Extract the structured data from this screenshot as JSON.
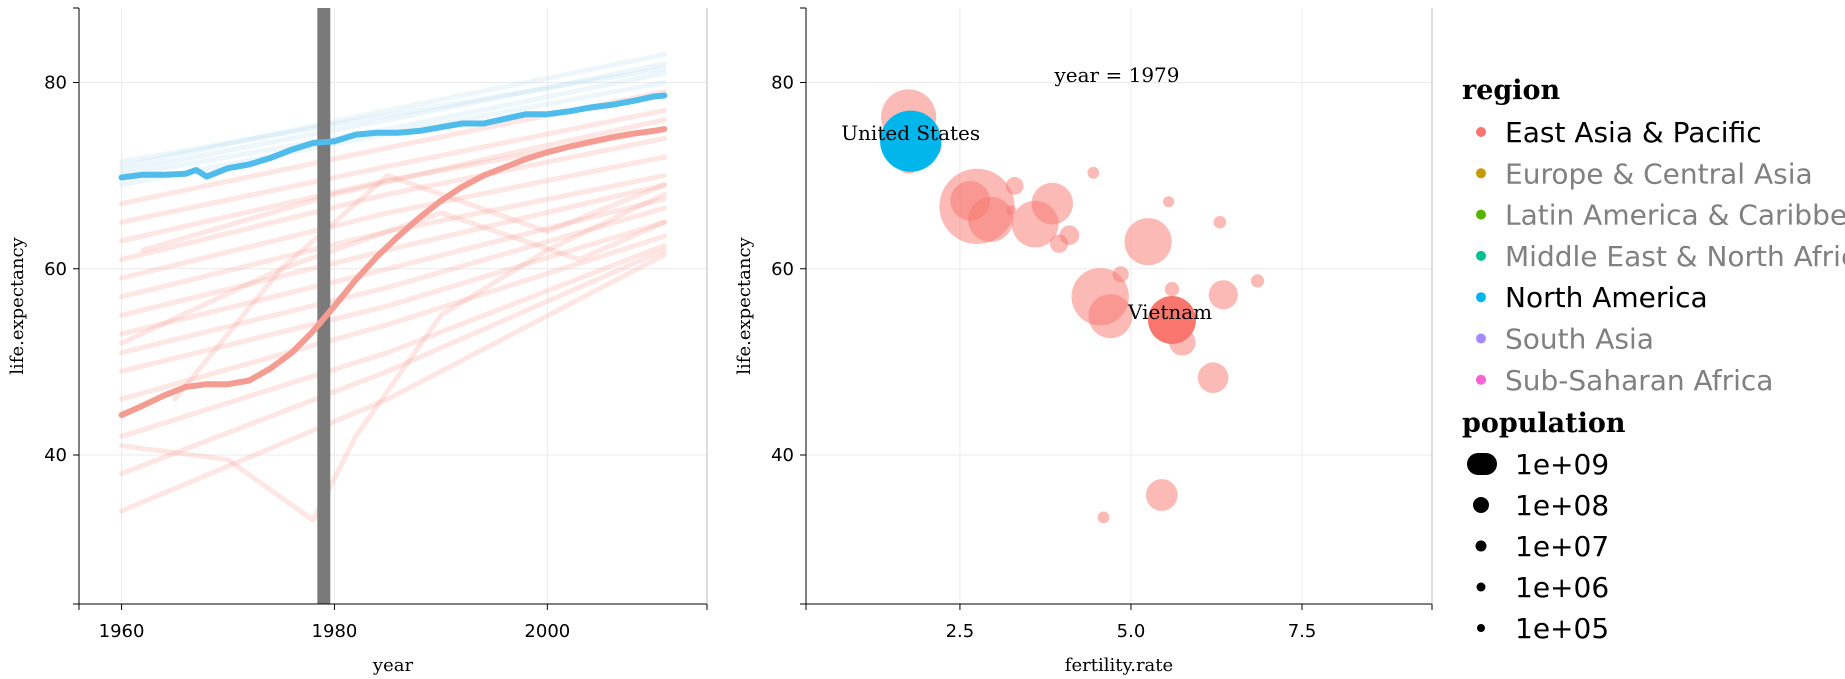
{
  "chart_data": [
    {
      "type": "line",
      "xlabel": "year",
      "ylabel": "life.expectancy",
      "xlim": [
        1956,
        2015
      ],
      "ylim": [
        24,
        88
      ],
      "xticks": [
        1960,
        1980,
        2000
      ],
      "yticks": [
        40,
        60,
        80
      ],
      "current_year_marker": 1979,
      "marker_color": "#7a7a7a",
      "highlighted_series": [
        {
          "name": "United States",
          "region": "North America",
          "color": "#4fbcec",
          "x": [
            1960,
            1962,
            1964,
            1966,
            1967,
            1968,
            1970,
            1972,
            1974,
            1976,
            1978,
            1980,
            1982,
            1984,
            1986,
            1988,
            1990,
            1992,
            1994,
            1996,
            1998,
            2000,
            2002,
            2004,
            2006,
            2008,
            2010,
            2011
          ],
          "y": [
            69.8,
            70.1,
            70.1,
            70.2,
            70.6,
            69.9,
            70.8,
            71.2,
            71.9,
            72.8,
            73.5,
            73.7,
            74.4,
            74.6,
            74.6,
            74.8,
            75.2,
            75.6,
            75.6,
            76.1,
            76.6,
            76.6,
            76.9,
            77.3,
            77.6,
            78.0,
            78.5,
            78.6
          ]
        },
        {
          "name": "Vietnam",
          "region": "East Asia & Pacific",
          "color": "#f59c92",
          "x": [
            1960,
            1962,
            1964,
            1966,
            1968,
            1970,
            1972,
            1974,
            1976,
            1978,
            1980,
            1982,
            1984,
            1986,
            1988,
            1990,
            1992,
            1994,
            1996,
            1998,
            2000,
            2002,
            2004,
            2006,
            2008,
            2010,
            2011
          ],
          "y": [
            44.3,
            45.3,
            46.4,
            47.3,
            47.6,
            47.6,
            48.0,
            49.3,
            51.0,
            53.3,
            56.0,
            58.8,
            61.3,
            63.5,
            65.5,
            67.3,
            68.8,
            70.0,
            70.9,
            71.8,
            72.5,
            73.1,
            73.6,
            74.1,
            74.5,
            74.8,
            75.0
          ]
        }
      ],
      "background_series": [
        {
          "name": "",
          "x": [
            1960,
            1985,
            2011
          ],
          "y": [
            71.0,
            77.0,
            83.0
          ]
        },
        {
          "name": "",
          "x": [
            1960,
            1985,
            2011
          ],
          "y": [
            70.5,
            76.0,
            82.0
          ]
        },
        {
          "name": "",
          "x": [
            1960,
            1985,
            2011
          ],
          "y": [
            71.5,
            76.5,
            81.5
          ]
        },
        {
          "name": "",
          "x": [
            1960,
            1985,
            2011
          ],
          "y": [
            70.0,
            75.0,
            81.0
          ]
        },
        {
          "name": "",
          "x": [
            1960,
            1985,
            2011
          ],
          "y": [
            69.0,
            74.5,
            80.0
          ]
        },
        {
          "name": "",
          "x": [
            1960,
            1985,
            2011
          ],
          "y": [
            67.0,
            73.0,
            79.0
          ]
        },
        {
          "name": "",
          "x": [
            1960,
            1985,
            2011
          ],
          "y": [
            65.0,
            71.0,
            77.0
          ]
        },
        {
          "name": "",
          "x": [
            1960,
            1985,
            2011
          ],
          "y": [
            63.0,
            69.5,
            75.0
          ]
        },
        {
          "name": "",
          "x": [
            1960,
            1985,
            2011
          ],
          "y": [
            61.0,
            68.0,
            74.0
          ]
        },
        {
          "name": "",
          "x": [
            1960,
            1985,
            2011
          ],
          "y": [
            59.0,
            66.0,
            72.0
          ]
        },
        {
          "name": "",
          "x": [
            1960,
            1985,
            2011
          ],
          "y": [
            57.0,
            64.0,
            70.0
          ]
        },
        {
          "name": "",
          "x": [
            1960,
            1985,
            2011
          ],
          "y": [
            55.0,
            62.0,
            69.0
          ]
        },
        {
          "name": "",
          "x": [
            1960,
            1985,
            2011
          ],
          "y": [
            53.0,
            60.0,
            67.5
          ]
        },
        {
          "name": "",
          "x": [
            1960,
            1985,
            2011
          ],
          "y": [
            51.0,
            58.0,
            66.5
          ]
        },
        {
          "name": "",
          "x": [
            1960,
            1985,
            2011
          ],
          "y": [
            49.0,
            56.0,
            65.0
          ]
        },
        {
          "name": "",
          "x": [
            1960,
            1985,
            2011
          ],
          "y": [
            46.0,
            54.0,
            63.5
          ]
        },
        {
          "name": "",
          "x": [
            1960,
            1985,
            2011
          ],
          "y": [
            42.0,
            51.0,
            62.5
          ]
        },
        {
          "name": "",
          "x": [
            1960,
            1985,
            2011
          ],
          "y": [
            38.0,
            49.0,
            62.0
          ]
        },
        {
          "name": "",
          "x": [
            1960,
            1985,
            2011
          ],
          "y": [
            34.0,
            46.0,
            61.5
          ]
        },
        {
          "name": "",
          "x": [
            1960,
            1970,
            1978,
            1982,
            1990,
            2000,
            2011
          ],
          "y": [
            41.0,
            39.5,
            33.0,
            42.0,
            55.0,
            62.0,
            68.0
          ]
        },
        {
          "name": "",
          "x": [
            1965,
            1975,
            1985,
            2000,
            2011
          ],
          "y": [
            46.0,
            60.0,
            70.0,
            64.0,
            69.0
          ]
        },
        {
          "name": "",
          "x": [
            1962,
            1980,
            1995,
            2011
          ],
          "y": [
            62.0,
            68.0,
            72.0,
            76.0
          ]
        },
        {
          "name": "",
          "x": [
            1960,
            1975,
            1990,
            2003,
            2011
          ],
          "y": [
            52.0,
            60.0,
            66.0,
            61.0,
            65.0
          ]
        }
      ]
    },
    {
      "type": "scatter",
      "xlabel": "fertility.rate",
      "ylabel": "life.expectancy",
      "xlim": [
        0.25,
        9.4
      ],
      "ylim": [
        24,
        88
      ],
      "xticks": [
        2.5,
        5.0,
        7.5
      ],
      "xtick_labels": [
        "2.5",
        "5.0",
        "7.5"
      ],
      "yticks": [
        40,
        60,
        80
      ],
      "annotation": "year = 1979",
      "labelled_points": [
        "United States",
        "Vietnam"
      ],
      "points": [
        {
          "name": "United States",
          "region": "North America",
          "x": 1.78,
          "y": 73.7,
          "population": 225000000,
          "highlight": true
        },
        {
          "name": "Vietnam",
          "region": "East Asia & Pacific",
          "x": 5.6,
          "y": 54.5,
          "population": 52000000,
          "highlight": true
        },
        {
          "name": "",
          "region": "East Asia & Pacific",
          "x": 2.75,
          "y": 66.7,
          "population": 970000000
        },
        {
          "name": "",
          "region": "East Asia & Pacific",
          "x": 1.75,
          "y": 76.3,
          "population": 116000000
        },
        {
          "name": "",
          "region": "East Asia & Pacific",
          "x": 4.55,
          "y": 57.0,
          "population": 148000000
        },
        {
          "name": "",
          "region": "East Asia & Pacific",
          "x": 5.25,
          "y": 62.9,
          "population": 47000000
        },
        {
          "name": "",
          "region": "East Asia & Pacific",
          "x": 3.6,
          "y": 64.8,
          "population": 45000000
        },
        {
          "name": "",
          "region": "East Asia & Pacific",
          "x": 2.95,
          "y": 65.3,
          "population": 37000000
        },
        {
          "name": "",
          "region": "East Asia & Pacific",
          "x": 3.85,
          "y": 67.0,
          "population": 24000000
        },
        {
          "name": "",
          "region": "East Asia & Pacific",
          "x": 2.65,
          "y": 67.3,
          "population": 19000000
        },
        {
          "name": "",
          "region": "East Asia & Pacific",
          "x": 4.7,
          "y": 54.9,
          "population": 32000000
        },
        {
          "name": "",
          "region": "East Asia & Pacific",
          "x": 5.45,
          "y": 35.7,
          "population": 7000000
        },
        {
          "name": "",
          "region": "East Asia & Pacific",
          "x": 6.2,
          "y": 48.3,
          "population": 6000000
        },
        {
          "name": "",
          "region": "East Asia & Pacific",
          "x": 6.35,
          "y": 57.2,
          "population": 5000000
        },
        {
          "name": "",
          "region": "East Asia & Pacific",
          "x": 5.75,
          "y": 52.1,
          "population": 3500000
        },
        {
          "name": "",
          "region": "East Asia & Pacific",
          "x": 2.05,
          "y": 73.2,
          "population": 3000000
        },
        {
          "name": "",
          "region": "East Asia & Pacific",
          "x": 1.75,
          "y": 71.5,
          "population": 2400000
        },
        {
          "name": "",
          "region": "East Asia & Pacific",
          "x": 4.1,
          "y": 63.6,
          "population": 1200000
        },
        {
          "name": "",
          "region": "East Asia & Pacific",
          "x": 3.95,
          "y": 62.7,
          "population": 1000000
        },
        {
          "name": "",
          "region": "East Asia & Pacific",
          "x": 3.3,
          "y": 68.9,
          "population": 900000
        },
        {
          "name": "",
          "region": "East Asia & Pacific",
          "x": 4.85,
          "y": 59.4,
          "population": 700000
        },
        {
          "name": "",
          "region": "East Asia & Pacific",
          "x": 5.6,
          "y": 57.8,
          "population": 500000
        },
        {
          "name": "",
          "region": "East Asia & Pacific",
          "x": 6.85,
          "y": 58.7,
          "population": 400000
        },
        {
          "name": "",
          "region": "East Asia & Pacific",
          "x": 6.3,
          "y": 65.0,
          "population": 350000
        },
        {
          "name": "",
          "region": "East Asia & Pacific",
          "x": 4.45,
          "y": 70.3,
          "population": 300000
        },
        {
          "name": "",
          "region": "East Asia & Pacific",
          "x": 5.55,
          "y": 67.2,
          "population": 250000
        },
        {
          "name": "",
          "region": "East Asia & Pacific",
          "x": 4.6,
          "y": 33.3,
          "population": 300000
        },
        {
          "name": "",
          "region": "East Asia & Pacific",
          "x": 3.25,
          "y": 66.3,
          "population": 200000
        },
        {
          "name": "",
          "region": "East Asia & Pacific",
          "x": 2.15,
          "y": 72.8,
          "population": 150000
        },
        {
          "name": "",
          "region": "East Asia & Pacific",
          "x": 1.55,
          "y": 73.0,
          "population": 100000
        }
      ]
    }
  ],
  "legend": {
    "region_title": "region",
    "regions": [
      {
        "label": "East Asia & Pacific",
        "color": "#f8766d",
        "active": true
      },
      {
        "label": "Europe & Central Asia",
        "color": "#c49a00",
        "active": false
      },
      {
        "label": "Latin America & Caribbean",
        "color": "#53b400",
        "active": false
      },
      {
        "label": "Middle East & North Africa",
        "color": "#00c094",
        "active": false
      },
      {
        "label": "North America",
        "color": "#00b6eb",
        "active": true
      },
      {
        "label": "South Asia",
        "color": "#a58aff",
        "active": false
      },
      {
        "label": "Sub-Saharan Africa",
        "color": "#fb61d7",
        "active": false
      }
    ],
    "population_title": "population",
    "population_sizes": [
      {
        "label": "1e+09",
        "value": 1000000000
      },
      {
        "label": "1e+08",
        "value": 100000000
      },
      {
        "label": "1e+07",
        "value": 10000000
      },
      {
        "label": "1e+06",
        "value": 1000000
      },
      {
        "label": "1e+05",
        "value": 100000
      }
    ],
    "inactive_text_color": "#808080",
    "active_text_color": "#000000"
  }
}
